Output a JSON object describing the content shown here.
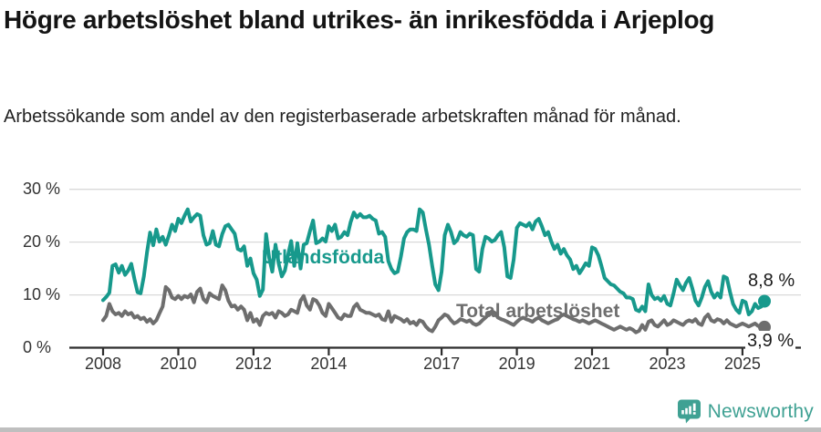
{
  "header": {
    "title": "Högre arbetslöshet bland utrikes- än inrikesfödda i Arjeplog",
    "subtitle": "Arbetssökande som andel av den registerbaserade arbetskraften månad för månad."
  },
  "chart_data": {
    "type": "line",
    "title": "Högre arbetslöshet bland utrikes- än inrikesfödda i Arjeplog",
    "subtitle": "Arbetssökande som andel av den registerbaserade arbetskraften månad för månad.",
    "x_unit": "month",
    "x_start": "2008-01",
    "x_end": "2025-08",
    "ylim": [
      0,
      30
    ],
    "grid": "horizontal",
    "y_gridlines": [
      10,
      20,
      30
    ],
    "y_tick_labels": [
      "30 %",
      "20 %",
      "10 %",
      "0 %"
    ],
    "x_ticks": [
      2008,
      2010,
      2012,
      2014,
      2017,
      2019,
      2021,
      2023,
      2025
    ],
    "colors": {
      "utlandsfodda": "#17998c",
      "total": "#6e6e6e",
      "grid": "#d9d9d9",
      "axis": "#2d2d2d",
      "brand_teal": "#3fa193"
    },
    "series": [
      {
        "name": "Utlandsfödda",
        "end_label": "8,8 %",
        "end_value": 8.8,
        "color": "#17998c",
        "values": [
          9.0,
          9.6,
          10.4,
          15.5,
          15.8,
          14.2,
          15.5,
          13.8,
          14.6,
          15.9,
          13.0,
          10.5,
          10.3,
          13.5,
          18.0,
          21.8,
          19.4,
          22.4,
          20.1,
          21.0,
          19.5,
          21.3,
          23.3,
          22.1,
          24.4,
          23.6,
          25.0,
          26.2,
          23.9,
          24.7,
          25.3,
          25.0,
          21.3,
          19.5,
          19.8,
          22.1,
          19.5,
          19.2,
          21.5,
          23.0,
          23.3,
          22.4,
          21.6,
          18.7,
          18.4,
          19.2,
          15.5,
          16.9,
          14.1,
          12.9,
          9.8,
          11.0,
          21.5,
          17.0,
          14.4,
          19.5,
          16.0,
          13.5,
          14.6,
          17.5,
          20.2,
          15.5,
          19.8,
          15.0,
          19.5,
          19.8,
          22.1,
          24.1,
          19.8,
          20.1,
          20.7,
          20.1,
          23.0,
          22.1,
          23.3,
          20.7,
          21.0,
          21.9,
          21.3,
          23.8,
          25.6,
          24.7,
          25.3,
          24.7,
          24.7,
          25.0,
          24.4,
          24.1,
          21.6,
          21.9,
          21.0,
          16.4,
          14.9,
          14.1,
          14.4,
          17.2,
          20.7,
          21.9,
          22.4,
          22.4,
          22.1,
          26.2,
          25.6,
          22.4,
          19.5,
          15.5,
          12.0,
          10.9,
          14.4,
          21.3,
          23.3,
          21.9,
          19.8,
          20.4,
          21.9,
          21.3,
          21.0,
          21.6,
          21.3,
          14.9,
          14.4,
          18.7,
          21.0,
          20.7,
          20.1,
          20.4,
          21.3,
          21.9,
          19.0,
          13.5,
          13.2,
          16.7,
          22.7,
          23.6,
          23.3,
          23.0,
          23.6,
          22.4,
          23.9,
          24.4,
          23.0,
          21.3,
          21.9,
          20.1,
          18.7,
          19.5,
          17.8,
          18.7,
          17.5,
          16.7,
          14.9,
          15.5,
          14.1,
          15.0,
          16.0,
          15.5,
          19.0,
          18.7,
          17.5,
          15.5,
          13.2,
          12.6,
          12.0,
          11.8,
          11.2,
          10.6,
          10.3,
          9.5,
          9.5,
          9.2,
          7.2,
          6.9,
          7.8,
          6.9,
          12.0,
          10.0,
          9.2,
          9.5,
          8.9,
          9.8,
          8.3,
          8.0,
          10.3,
          12.9,
          11.8,
          10.9,
          12.3,
          13.2,
          11.2,
          8.9,
          8.0,
          9.5,
          11.5,
          12.6,
          10.6,
          9.5,
          10.3,
          9.5,
          13.5,
          13.2,
          10.6,
          8.3,
          7.2,
          6.6,
          8.9,
          8.6,
          6.3,
          6.9,
          8.3,
          7.5,
          7.8,
          8.8
        ]
      },
      {
        "name": "Total arbetslöshet",
        "end_label": "3,9 %",
        "end_value": 3.9,
        "color": "#6e6e6e",
        "values": [
          5.2,
          6.0,
          8.3,
          6.9,
          6.3,
          6.6,
          6.0,
          6.9,
          6.3,
          6.6,
          5.7,
          6.0,
          5.4,
          5.7,
          4.9,
          5.4,
          4.6,
          5.2,
          6.5,
          7.8,
          11.5,
          10.9,
          9.5,
          9.2,
          9.8,
          9.2,
          9.8,
          9.5,
          10.1,
          8.6,
          10.6,
          11.2,
          9.2,
          8.6,
          10.3,
          9.8,
          9.5,
          9.2,
          11.8,
          10.9,
          8.9,
          7.8,
          8.0,
          7.2,
          7.8,
          7.2,
          5.2,
          6.6,
          4.9,
          5.4,
          4.3,
          6.0,
          6.6,
          6.3,
          6.6,
          5.7,
          6.9,
          6.6,
          6.0,
          6.3,
          7.2,
          6.9,
          6.6,
          8.9,
          9.8,
          8.0,
          7.2,
          9.2,
          8.9,
          8.0,
          6.6,
          6.0,
          8.3,
          7.5,
          6.6,
          5.7,
          5.4,
          6.3,
          6.0,
          6.0,
          7.7,
          8.3,
          7.2,
          6.9,
          6.6,
          6.6,
          6.3,
          6.0,
          6.3,
          5.4,
          5.2,
          6.9,
          4.9,
          6.0,
          5.7,
          5.4,
          4.9,
          5.4,
          4.6,
          4.9,
          4.3,
          5.2,
          4.9,
          4.0,
          3.4,
          3.1,
          4.0,
          5.2,
          5.7,
          6.3,
          6.0,
          5.2,
          4.6,
          4.9,
          5.4,
          5.2,
          4.9,
          5.2,
          4.6,
          4.3,
          4.6,
          5.2,
          5.7,
          6.3,
          6.9,
          6.6,
          5.7,
          5.4,
          5.2,
          4.9,
          4.6,
          4.3,
          4.9,
          5.4,
          5.7,
          5.4,
          5.2,
          4.9,
          5.4,
          5.7,
          5.2,
          4.9,
          4.6,
          4.9,
          5.2,
          5.4,
          6.0,
          6.3,
          6.0,
          5.7,
          5.4,
          5.2,
          4.9,
          5.2,
          4.9,
          4.6,
          4.9,
          5.2,
          4.9,
          4.6,
          4.3,
          4.0,
          3.7,
          3.4,
          3.7,
          4.0,
          3.7,
          3.4,
          3.7,
          3.4,
          2.9,
          3.2,
          4.3,
          3.4,
          4.9,
          5.2,
          4.3,
          4.0,
          4.6,
          5.2,
          4.3,
          4.6,
          5.2,
          4.9,
          4.6,
          4.3,
          4.9,
          5.2,
          4.9,
          5.4,
          4.6,
          4.3,
          5.7,
          6.3,
          5.2,
          4.9,
          5.4,
          5.2,
          4.6,
          5.2,
          4.6,
          4.3,
          4.0,
          4.3,
          4.6,
          4.3,
          4.0,
          4.3,
          4.6,
          4.1,
          4.0,
          3.9
        ]
      }
    ]
  },
  "footer": {
    "brand": "Newsworthy"
  }
}
